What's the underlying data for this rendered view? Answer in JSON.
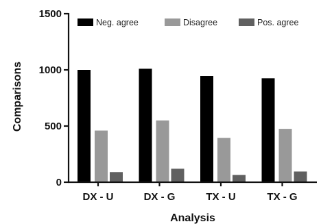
{
  "chart_data": {
    "type": "bar",
    "title": "",
    "xlabel": "Analysis",
    "ylabel": "Comparisons",
    "ylim": [
      0,
      1500
    ],
    "yticks": [
      0,
      500,
      1000,
      1500
    ],
    "grid": false,
    "legend_position": "top",
    "categories": [
      "DX - U",
      "DX - G",
      "TX - U",
      "TX - G"
    ],
    "series": [
      {
        "name": "Neg. agree",
        "color": "#000000",
        "values": [
          1000,
          1010,
          945,
          925
        ]
      },
      {
        "name": "Disagree",
        "color": "#999999",
        "values": [
          460,
          550,
          395,
          475
        ]
      },
      {
        "name": "Pos. agree",
        "color": "#606060",
        "values": [
          90,
          120,
          65,
          95
        ]
      }
    ]
  }
}
